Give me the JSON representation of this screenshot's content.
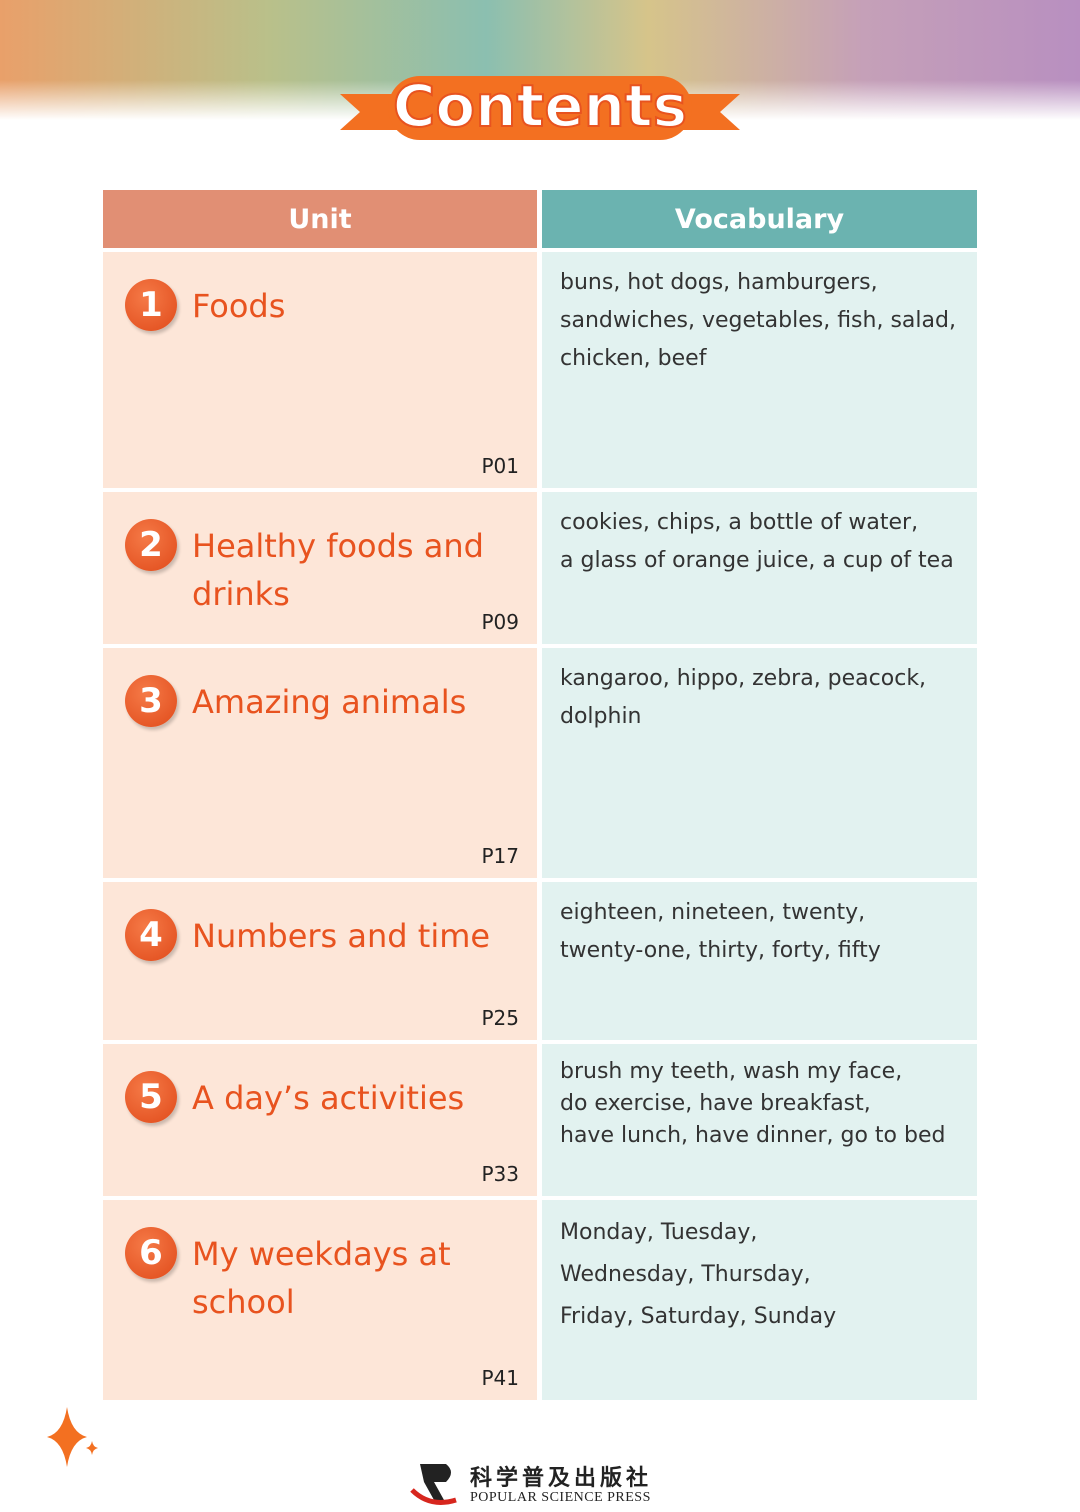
{
  "title": "Contents",
  "table": {
    "header": [
      "Unit",
      "Vocabulary"
    ],
    "rows": [
      {
        "number": 1,
        "unit": "Foods",
        "page": "P01",
        "vocabulary": [
          "buns, hot dogs, hamburgers,",
          "sandwiches, vegetables, fish, salad,",
          "chicken, beef"
        ]
      },
      {
        "number": 2,
        "unit": "Healthy foods and drinks",
        "page": "P09",
        "vocabulary": [
          "cookies, chips, a bottle of water,",
          "a glass of orange juice, a cup of tea"
        ]
      },
      {
        "number": 3,
        "unit": "Amazing animals",
        "page": "P17",
        "vocabulary": [
          "kangaroo, hippo, zebra, peacock,",
          "dolphin"
        ]
      },
      {
        "number": 4,
        "unit": "Numbers and time",
        "page": "P25",
        "vocabulary": [
          "eighteen, nineteen, twenty,",
          "twenty-one, thirty, forty, fifty"
        ]
      },
      {
        "number": 5,
        "unit": "A day’s activities",
        "page": "P33",
        "vocabulary": [
          "brush my teeth, wash my face,",
          "do exercise, have breakfast,",
          "have lunch, have dinner, go to bed"
        ]
      },
      {
        "number": 6,
        "unit": "My weekdays at school",
        "page": "P41",
        "vocabulary": [
          "Monday, Tuesday,",
          "Wednesday, Thursday,",
          "Friday, Saturday, Sunday"
        ]
      }
    ]
  },
  "footer": {
    "publisher_cn": "科学普及出版社",
    "publisher_en": "POPULAR SCIENCE PRESS"
  }
}
